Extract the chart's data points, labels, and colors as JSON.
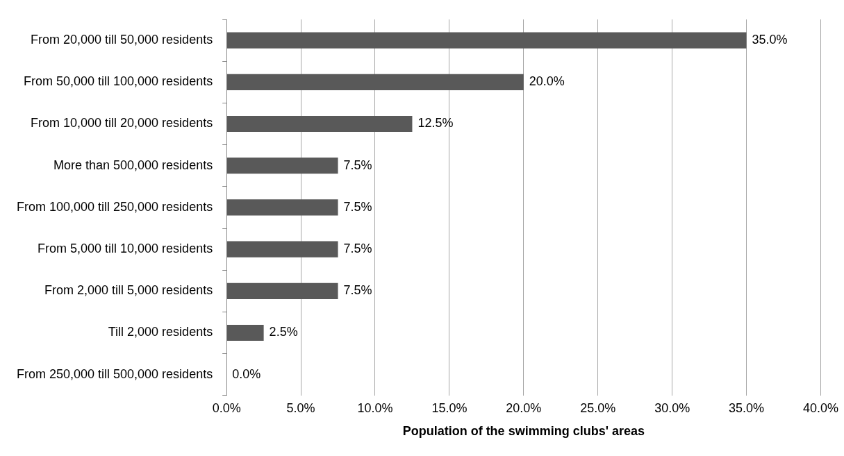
{
  "chart_data": {
    "type": "bar",
    "orientation": "horizontal",
    "xlabel": "Population of the swimming clubs' areas",
    "categories": [
      "From 20,000 till 50,000 residents",
      "From 50,000 till 100,000 residents",
      "From 10,000 till 20,000 residents",
      "More than 500,000 residents",
      "From 100,000 till 250,000 residents",
      "From 5,000 till 10,000 residents",
      "From 2,000 till 5,000 residents",
      "Till 2,000 residents",
      "From 250,000 till 500,000 residents"
    ],
    "values": [
      35,
      20,
      12.5,
      7.5,
      7.5,
      7.5,
      7.5,
      2.5,
      0
    ],
    "value_labels": [
      "35.0%",
      "20.0%",
      "12.5%",
      "7.5%",
      "7.5%",
      "7.5%",
      "7.5%",
      "2.5%",
      "0.0%"
    ],
    "color": "#595959",
    "xlim": [
      0,
      40
    ],
    "xticks": [
      {
        "value": 0,
        "label": "0.0%"
      },
      {
        "value": 5,
        "label": "5.0%"
      },
      {
        "value": 10,
        "label": "10.0%"
      },
      {
        "value": 15,
        "label": "15.0%"
      },
      {
        "value": 20,
        "label": "20.0%"
      },
      {
        "value": 25,
        "label": "25.0%"
      },
      {
        "value": 30,
        "label": "30.0%"
      },
      {
        "value": 35,
        "label": "35.0%"
      },
      {
        "value": 40,
        "label": "40.0%"
      }
    ],
    "grid": "x",
    "legend": false
  }
}
